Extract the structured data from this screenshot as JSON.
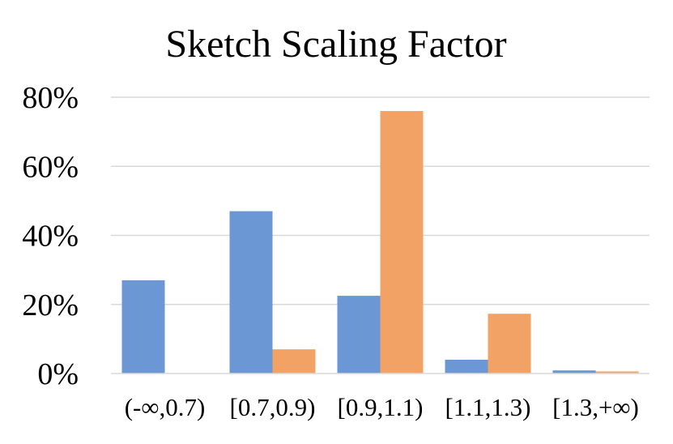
{
  "chart_data": {
    "type": "bar",
    "title": "Sketch Scaling Factor",
    "xlabel": "",
    "ylabel": "",
    "categories": [
      "(-∞,0.7)",
      "[0.7,0.9)",
      "[0.9,1.1)",
      "[1.1,1.3)",
      "[1.3,+∞)"
    ],
    "series": [
      {
        "values": [
          0.27,
          0.47,
          0.225,
          0.04,
          0.009
        ],
        "color": "#6b97d4"
      },
      {
        "values": [
          0.0,
          0.07,
          0.76,
          0.173,
          0.006
        ],
        "color": "#f2a264"
      }
    ],
    "ylim": [
      0,
      0.8
    ],
    "yticks": [
      0,
      0.2,
      0.4,
      0.6,
      0.8
    ],
    "ytick_labels": [
      "0%",
      "20%",
      "40%",
      "60%",
      "80%"
    ],
    "grid": true,
    "legend": false
  }
}
